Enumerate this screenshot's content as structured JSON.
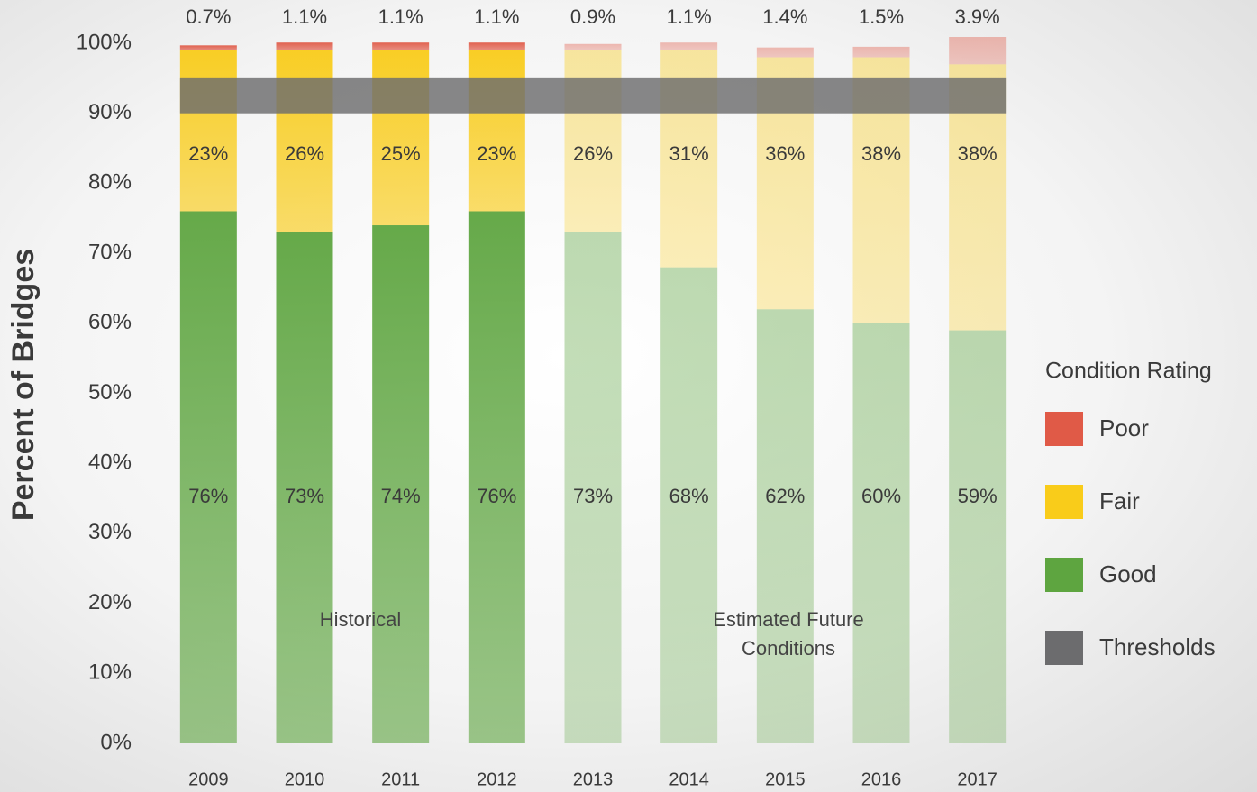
{
  "chart_data": {
    "type": "stacked_bar",
    "y_label": "Percent of Bridges",
    "categories": [
      "2009",
      "2010",
      "2011",
      "2012",
      "2013",
      "2014",
      "2015",
      "2016",
      "2017"
    ],
    "estimated": [
      false,
      false,
      false,
      false,
      true,
      true,
      true,
      true,
      true
    ],
    "series": [
      {
        "name": "Good",
        "color": "#5ea540",
        "values": [
          76,
          73,
          74,
          76,
          73,
          68,
          62,
          60,
          59
        ],
        "value_labels": [
          "76%",
          "73%",
          "74%",
          "76%",
          "73%",
          "68%",
          "62%",
          "60%",
          "59%"
        ]
      },
      {
        "name": "Fair",
        "color": "#f9cc1a",
        "values": [
          23,
          26,
          25,
          23,
          26,
          31,
          36,
          38,
          38
        ],
        "value_labels": [
          "23%",
          "26%",
          "25%",
          "23%",
          "26%",
          "31%",
          "36%",
          "38%",
          "38%"
        ]
      },
      {
        "name": "Poor",
        "color": "#e05a47",
        "values": [
          0.7,
          1.1,
          1.1,
          1.1,
          0.9,
          1.1,
          1.4,
          1.5,
          3.9
        ],
        "value_labels": [
          "0.7%",
          "1.1%",
          "1.1%",
          "1.1%",
          "0.9%",
          "1.1%",
          "1.4%",
          "1.5%",
          "3.9%"
        ]
      }
    ],
    "thresholds": {
      "name": "Thresholds",
      "color": "#6c6c6e",
      "range": [
        90,
        95
      ]
    },
    "legend_title": "Condition Rating",
    "annotations": [
      "Historical",
      "Estimated Future Conditions"
    ],
    "ylim": [
      0,
      100
    ],
    "yticks": [
      {
        "value": 0,
        "label": "0%"
      },
      {
        "value": 10,
        "label": "10%"
      },
      {
        "value": 20,
        "label": "20%"
      },
      {
        "value": 30,
        "label": "30%"
      },
      {
        "value": 40,
        "label": "40%"
      },
      {
        "value": 50,
        "label": "50%"
      },
      {
        "value": 60,
        "label": "60%"
      },
      {
        "value": 70,
        "label": "70%"
      },
      {
        "value": 80,
        "label": "80%"
      },
      {
        "value": 90,
        "label": "90%"
      },
      {
        "value": 100,
        "label": "100%"
      }
    ]
  }
}
